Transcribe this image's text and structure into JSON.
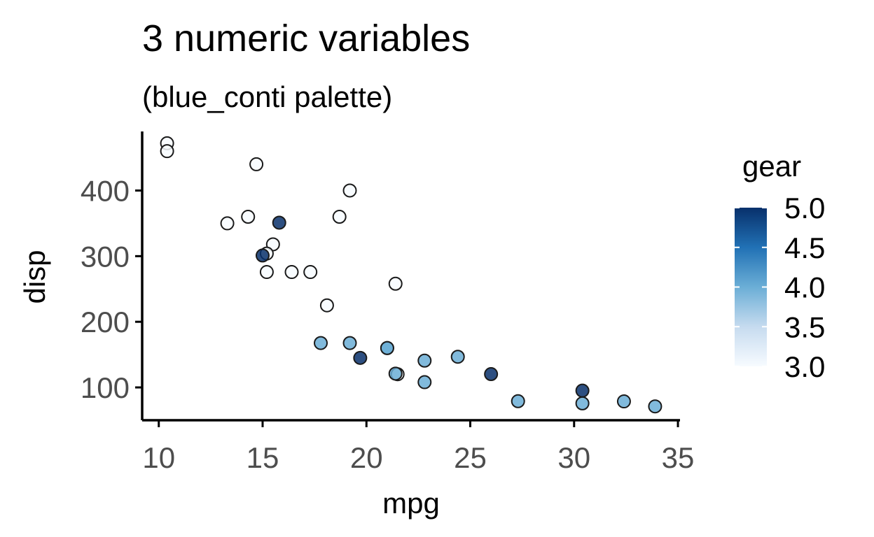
{
  "chart_data": {
    "type": "scatter",
    "title": "3 numeric variables",
    "subtitle": "(blue_conti palette)",
    "xlabel": "mpg",
    "ylabel": "disp",
    "xlim": [
      9.2,
      35.1
    ],
    "ylim": [
      50,
      490
    ],
    "x_ticks": [
      10,
      15,
      20,
      25,
      30,
      35
    ],
    "y_ticks": [
      100,
      200,
      300,
      400
    ],
    "grid": false,
    "color_variable": "gear",
    "legend": {
      "title": "gear",
      "position": "right",
      "range": [
        3.0,
        5.0
      ],
      "labels": [
        "5.0",
        "4.5",
        "4.0",
        "3.5",
        "3.0"
      ],
      "colors": [
        "#f7fbff",
        "#c6dbef",
        "#6baed6",
        "#2171b5",
        "#08306b"
      ]
    },
    "points": [
      {
        "x": 21.0,
        "y": 160,
        "c": 4
      },
      {
        "x": 21.0,
        "y": 160,
        "c": 4
      },
      {
        "x": 22.8,
        "y": 108,
        "c": 4
      },
      {
        "x": 21.4,
        "y": 258,
        "c": 3
      },
      {
        "x": 18.7,
        "y": 360,
        "c": 3
      },
      {
        "x": 18.1,
        "y": 225,
        "c": 3
      },
      {
        "x": 14.3,
        "y": 360,
        "c": 3
      },
      {
        "x": 24.4,
        "y": 146.7,
        "c": 4
      },
      {
        "x": 22.8,
        "y": 140.8,
        "c": 4
      },
      {
        "x": 19.2,
        "y": 167.6,
        "c": 4
      },
      {
        "x": 17.8,
        "y": 167.6,
        "c": 4
      },
      {
        "x": 16.4,
        "y": 275.8,
        "c": 3
      },
      {
        "x": 17.3,
        "y": 275.8,
        "c": 3
      },
      {
        "x": 15.2,
        "y": 275.8,
        "c": 3
      },
      {
        "x": 10.4,
        "y": 472,
        "c": 3
      },
      {
        "x": 10.4,
        "y": 460,
        "c": 3
      },
      {
        "x": 14.7,
        "y": 440,
        "c": 3
      },
      {
        "x": 32.4,
        "y": 78.7,
        "c": 4
      },
      {
        "x": 30.4,
        "y": 75.7,
        "c": 4
      },
      {
        "x": 33.9,
        "y": 71.1,
        "c": 4
      },
      {
        "x": 21.5,
        "y": 120.1,
        "c": 3
      },
      {
        "x": 15.5,
        "y": 318,
        "c": 3
      },
      {
        "x": 15.2,
        "y": 304,
        "c": 3
      },
      {
        "x": 13.3,
        "y": 350,
        "c": 3
      },
      {
        "x": 19.2,
        "y": 400,
        "c": 3
      },
      {
        "x": 27.3,
        "y": 79,
        "c": 4
      },
      {
        "x": 26.0,
        "y": 120.3,
        "c": 5
      },
      {
        "x": 30.4,
        "y": 95.1,
        "c": 5
      },
      {
        "x": 15.8,
        "y": 351,
        "c": 5
      },
      {
        "x": 19.7,
        "y": 145,
        "c": 5
      },
      {
        "x": 15.0,
        "y": 301,
        "c": 5
      },
      {
        "x": 21.4,
        "y": 121,
        "c": 4
      }
    ]
  }
}
